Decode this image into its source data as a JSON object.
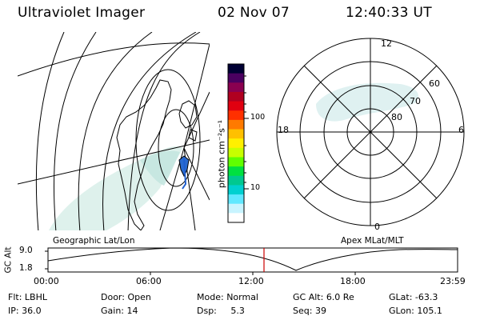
{
  "header": {
    "instrument": "Ultraviolet Imager",
    "date": "02 Nov 07",
    "time": "12:40:33 UT"
  },
  "colorbar": {
    "label": "photon cm⁻²s⁻¹",
    "ticks": [
      "100",
      "10"
    ],
    "colors": [
      "#000033",
      "#4a0060",
      "#8a0050",
      "#b00020",
      "#e00010",
      "#ff3000",
      "#ff7a00",
      "#ffc000",
      "#fff000",
      "#c8ff00",
      "#60ff00",
      "#00e040",
      "#00c890",
      "#00d0d0",
      "#60e8ff",
      "#c8f4ff",
      "#ffffff"
    ]
  },
  "polar_plot": {
    "lat_labels": [
      "80",
      "70",
      "60"
    ],
    "mlt_labels": {
      "top": "12",
      "left": "18",
      "right": "6",
      "bottom": "0"
    }
  },
  "panel_labels": {
    "left": "Geographic Lat/Lon",
    "right": "Apex MLat/MLT"
  },
  "altitude_plot": {
    "ylabel": "GC Alt",
    "yticks": [
      "9.0",
      "1.8"
    ],
    "xticks": [
      "00:00",
      "06:00",
      "12:00",
      "18:00",
      "23:59"
    ],
    "current_marker_time": "12:40"
  },
  "info": {
    "row1": [
      {
        "label": "Flt:",
        "value": "LBHL"
      },
      {
        "label": "Door:",
        "value": "Open"
      },
      {
        "label": "Mode:",
        "value": "Normal"
      },
      {
        "label": "GC Alt:",
        "value": "6.0 Re"
      },
      {
        "label": "GLat:",
        "value": "-63.3"
      }
    ],
    "row2": [
      {
        "label": "IP:",
        "value": "36.0"
      },
      {
        "label": "Gain:",
        "value": "14"
      },
      {
        "label": "Dsp:",
        "value": "5.3"
      },
      {
        "label": "Seq:",
        "value": "39"
      },
      {
        "label": "GLon:",
        "value": "105.1"
      }
    ]
  }
}
